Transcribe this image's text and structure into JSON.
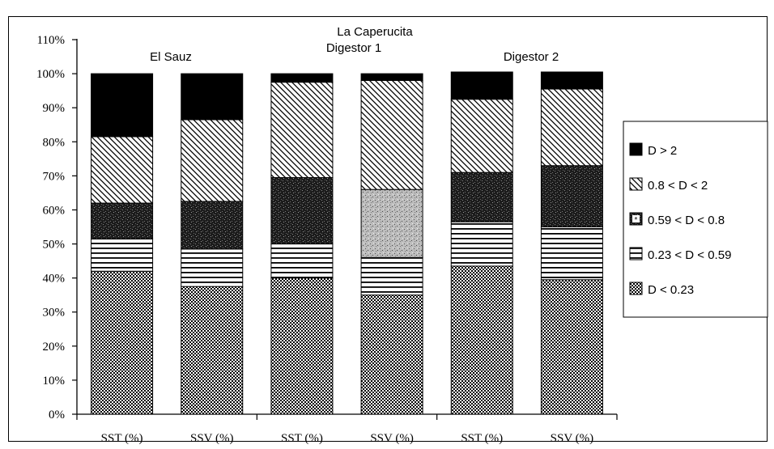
{
  "chart_data": {
    "type": "bar",
    "stacked": true,
    "categories": [
      "SST (%)",
      "SSV (%)",
      "SST (%)",
      "SSV (%)",
      "SST (%)",
      "SSV (%)"
    ],
    "group_labels": [
      "El Sauz",
      "Digestor 1",
      "Digestor 2"
    ],
    "super_title": "La Caperucita",
    "y_ticks": [
      "0%",
      "10%",
      "20%",
      "30%",
      "40%",
      "50%",
      "60%",
      "70%",
      "80%",
      "90%",
      "100%",
      "110%"
    ],
    "ylim": [
      0,
      110
    ],
    "grid": false,
    "legend_position": "right",
    "series": [
      {
        "name": "D < 0.23",
        "pattern": "checker",
        "values": [
          42,
          37.5,
          40,
          35,
          43.5,
          39.5
        ]
      },
      {
        "name": "0.23 < D < 0.59",
        "pattern": "horizontal-lines",
        "values": [
          9.5,
          11,
          10,
          11,
          13,
          15.5
        ]
      },
      {
        "name": "0.59 < D < 0.8",
        "pattern": "speckle",
        "values": [
          10.5,
          14,
          19.5,
          20,
          14.5,
          18
        ]
      },
      {
        "name": "0.8 < D < 2",
        "pattern": "diagonal-lines",
        "values": [
          19.5,
          24,
          28,
          32,
          21.5,
          22.5
        ]
      },
      {
        "name": "D > 2",
        "pattern": "solid",
        "values": [
          18.5,
          13.5,
          2.5,
          2,
          8,
          5
        ]
      }
    ],
    "colors": {
      "ink": "#000000",
      "speckle": "#2a2a2a",
      "background": "#ffffff"
    }
  }
}
